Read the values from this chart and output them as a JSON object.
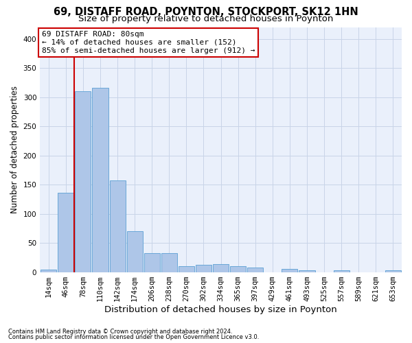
{
  "title1": "69, DISTAFF ROAD, POYNTON, STOCKPORT, SK12 1HN",
  "title2": "Size of property relative to detached houses in Poynton",
  "xlabel": "Distribution of detached houses by size in Poynton",
  "ylabel": "Number of detached properties",
  "footnote1": "Contains HM Land Registry data © Crown copyright and database right 2024.",
  "footnote2": "Contains public sector information licensed under the Open Government Licence v3.0.",
  "bin_labels": [
    "14sqm",
    "46sqm",
    "78sqm",
    "110sqm",
    "142sqm",
    "174sqm",
    "206sqm",
    "238sqm",
    "270sqm",
    "302sqm",
    "334sqm",
    "365sqm",
    "397sqm",
    "429sqm",
    "461sqm",
    "493sqm",
    "525sqm",
    "557sqm",
    "589sqm",
    "621sqm",
    "653sqm"
  ],
  "bar_values": [
    4,
    136,
    311,
    316,
    157,
    70,
    32,
    32,
    10,
    13,
    14,
    10,
    8,
    0,
    5,
    3,
    0,
    3,
    0,
    0,
    3
  ],
  "bar_color": "#aec6e8",
  "bar_edge_color": "#5a9fd4",
  "vline_index": 2,
  "vline_color": "#cc0000",
  "ann_line1": "69 DISTAFF ROAD: 80sqm",
  "ann_line2": "← 14% of detached houses are smaller (152)",
  "ann_line3": "85% of semi-detached houses are larger (912) →",
  "ann_box_color": "#ffffff",
  "ann_box_edge": "#cc0000",
  "ylim_max": 420,
  "yticks": [
    0,
    50,
    100,
    150,
    200,
    250,
    300,
    350,
    400
  ],
  "grid_color": "#c8d4e8",
  "bg_color": "#eaf0fb",
  "title1_fontsize": 10.5,
  "title2_fontsize": 9.5,
  "xlabel_fontsize": 9.5,
  "ylabel_fontsize": 8.5,
  "tick_fontsize": 7.5,
  "ann_fontsize": 8
}
